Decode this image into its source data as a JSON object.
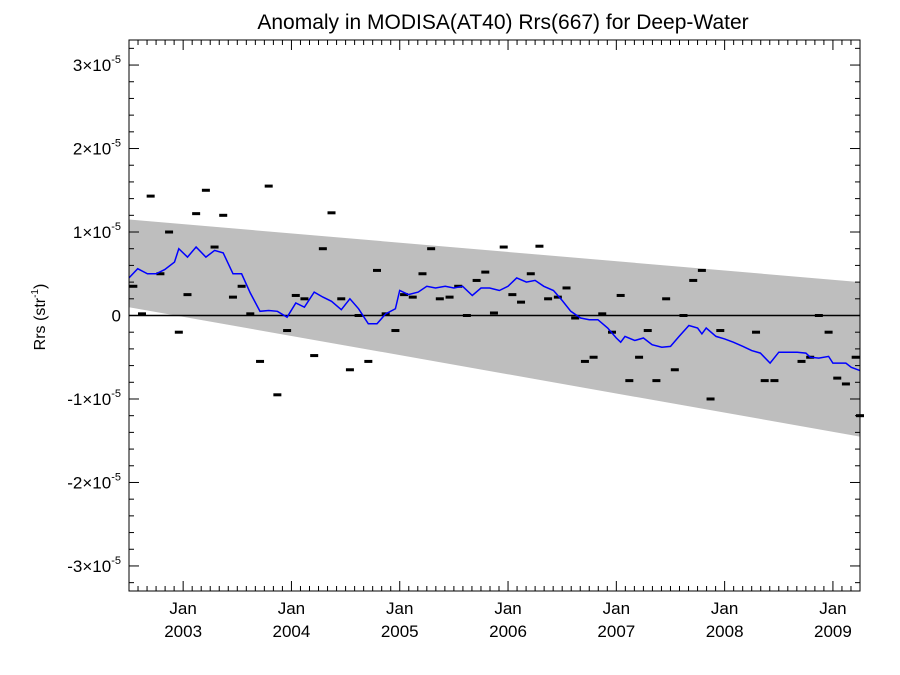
{
  "chart_data": {
    "type": "scatter",
    "title": "Anomaly in MODISA(AT40) Rrs(667) for Deep-Water",
    "ylabel": "Rrs (str-1)",
    "ylabel_main": "Rrs (str",
    "ylabel_sup": "-1",
    "ylabel_close": ")",
    "xlabel": "",
    "xlim": [
      2002.5,
      2009.25
    ],
    "ylim": [
      -3.3e-05,
      3.3e-05
    ],
    "grid": false,
    "y_ticks": [
      {
        "value": -3e-05,
        "mantissa": "-3",
        "base": "×10",
        "exp": "-5"
      },
      {
        "value": -2e-05,
        "mantissa": "-2",
        "base": "×10",
        "exp": "-5"
      },
      {
        "value": -1e-05,
        "mantissa": "-1",
        "base": "×10",
        "exp": "-5"
      },
      {
        "value": 0,
        "mantissa": "0",
        "base": "",
        "exp": ""
      },
      {
        "value": 1e-05,
        "mantissa": "1",
        "base": "×10",
        "exp": "-5"
      },
      {
        "value": 2e-05,
        "mantissa": "2",
        "base": "×10",
        "exp": "-5"
      },
      {
        "value": 3e-05,
        "mantissa": "3",
        "base": "×10",
        "exp": "-5"
      }
    ],
    "x_ticks": [
      {
        "value": 2003.0,
        "month": "Jan",
        "year": "2003"
      },
      {
        "value": 2004.0,
        "month": "Jan",
        "year": "2004"
      },
      {
        "value": 2005.0,
        "month": "Jan",
        "year": "2005"
      },
      {
        "value": 2006.0,
        "month": "Jan",
        "year": "2006"
      },
      {
        "value": 2007.0,
        "month": "Jan",
        "year": "2007"
      },
      {
        "value": 2008.0,
        "month": "Jan",
        "year": "2008"
      },
      {
        "value": 2009.0,
        "month": "Jan",
        "year": "2009"
      }
    ],
    "band": {
      "upper": [
        [
          2002.5,
          1.15e-05
        ],
        [
          2009.25,
          4e-06
        ]
      ],
      "lower": [
        [
          2002.5,
          1e-06
        ],
        [
          2009.25,
          -1.45e-05
        ]
      ],
      "color": "#bebebe"
    },
    "zero_line_color": "#000000",
    "series": [
      {
        "kind": "markers",
        "color": "#000000",
        "points": [
          [
            2002.54,
            3.5e-06
          ],
          [
            2002.62,
            2e-07
          ],
          [
            2002.7,
            1.43e-05
          ],
          [
            2002.79,
            5e-06
          ],
          [
            2002.87,
            1e-05
          ],
          [
            2002.96,
            -2e-06
          ],
          [
            2003.04,
            2.5e-06
          ],
          [
            2003.12,
            1.22e-05
          ],
          [
            2003.21,
            1.5e-05
          ],
          [
            2003.29,
            8.2e-06
          ],
          [
            2003.37,
            1.2e-05
          ],
          [
            2003.46,
            2.2e-06
          ],
          [
            2003.54,
            3.5e-06
          ],
          [
            2003.62,
            2e-07
          ],
          [
            2003.71,
            -5.5e-06
          ],
          [
            2003.79,
            1.55e-05
          ],
          [
            2003.87,
            -9.5e-06
          ],
          [
            2003.96,
            -1.8e-06
          ],
          [
            2004.04,
            2.4e-06
          ],
          [
            2004.12,
            2e-06
          ],
          [
            2004.21,
            -4.8e-06
          ],
          [
            2004.29,
            8e-06
          ],
          [
            2004.37,
            1.23e-05
          ],
          [
            2004.46,
            2e-06
          ],
          [
            2004.54,
            -6.5e-06
          ],
          [
            2004.62,
            0.0
          ],
          [
            2004.71,
            -5.5e-06
          ],
          [
            2004.79,
            5.4e-06
          ],
          [
            2004.87,
            2e-07
          ],
          [
            2004.96,
            -1.8e-06
          ],
          [
            2005.04,
            2.5e-06
          ],
          [
            2005.12,
            2.2e-06
          ],
          [
            2005.21,
            5e-06
          ],
          [
            2005.29,
            8e-06
          ],
          [
            2005.37,
            2e-06
          ],
          [
            2005.46,
            2.2e-06
          ],
          [
            2005.54,
            3.5e-06
          ],
          [
            2005.62,
            0.0
          ],
          [
            2005.71,
            4.2e-06
          ],
          [
            2005.79,
            5.2e-06
          ],
          [
            2005.87,
            3e-07
          ],
          [
            2005.96,
            8.2e-06
          ],
          [
            2006.04,
            2.5e-06
          ],
          [
            2006.12,
            1.6e-06
          ],
          [
            2006.21,
            5e-06
          ],
          [
            2006.29,
            8.3e-06
          ],
          [
            2006.37,
            2e-06
          ],
          [
            2006.46,
            2.2e-06
          ],
          [
            2006.54,
            3.3e-06
          ],
          [
            2006.62,
            -3e-07
          ],
          [
            2006.71,
            -5.5e-06
          ],
          [
            2006.79,
            -5e-06
          ],
          [
            2006.87,
            2e-07
          ],
          [
            2006.96,
            -2e-06
          ],
          [
            2007.04,
            2.4e-06
          ],
          [
            2007.12,
            -7.8e-06
          ],
          [
            2007.21,
            -5e-06
          ],
          [
            2007.29,
            -1.8e-06
          ],
          [
            2007.37,
            -7.8e-06
          ],
          [
            2007.46,
            2e-06
          ],
          [
            2007.54,
            -6.5e-06
          ],
          [
            2007.62,
            0.0
          ],
          [
            2007.71,
            4.2e-06
          ],
          [
            2007.79,
            5.4e-06
          ],
          [
            2007.87,
            -1e-05
          ],
          [
            2007.96,
            -1.8e-06
          ],
          [
            2008.29,
            -2e-06
          ],
          [
            2008.37,
            -7.8e-06
          ],
          [
            2008.46,
            -7.8e-06
          ],
          [
            2008.71,
            -5.5e-06
          ],
          [
            2008.79,
            -5e-06
          ],
          [
            2008.87,
            0.0
          ],
          [
            2008.96,
            -2e-06
          ],
          [
            2009.04,
            -7.5e-06
          ],
          [
            2009.12,
            -8.2e-06
          ],
          [
            2009.21,
            -5e-06
          ],
          [
            2009.25,
            -1.2e-05
          ]
        ]
      },
      {
        "kind": "line",
        "color": "#0000ff",
        "points": [
          [
            2002.5,
            4.5e-06
          ],
          [
            2002.58,
            5.6e-06
          ],
          [
            2002.67,
            5e-06
          ],
          [
            2002.75,
            5e-06
          ],
          [
            2002.83,
            5.5e-06
          ],
          [
            2002.92,
            6.4e-06
          ],
          [
            2002.96,
            8e-06
          ],
          [
            2003.04,
            7e-06
          ],
          [
            2003.12,
            8.2e-06
          ],
          [
            2003.21,
            7e-06
          ],
          [
            2003.29,
            7.8e-06
          ],
          [
            2003.37,
            7.5e-06
          ],
          [
            2003.46,
            5e-06
          ],
          [
            2003.54,
            5e-06
          ],
          [
            2003.62,
            2.7e-06
          ],
          [
            2003.71,
            5e-07
          ],
          [
            2003.79,
            6e-07
          ],
          [
            2003.87,
            5e-07
          ],
          [
            2003.96,
            -2e-07
          ],
          [
            2004.04,
            1.5e-06
          ],
          [
            2004.12,
            1e-06
          ],
          [
            2004.21,
            2.8e-06
          ],
          [
            2004.29,
            2.2e-06
          ],
          [
            2004.37,
            1.7e-06
          ],
          [
            2004.46,
            7e-07
          ],
          [
            2004.54,
            2e-06
          ],
          [
            2004.62,
            8e-07
          ],
          [
            2004.71,
            -1e-06
          ],
          [
            2004.79,
            -1e-06
          ],
          [
            2004.87,
            2e-07
          ],
          [
            2004.96,
            8e-07
          ],
          [
            2005.0,
            3e-06
          ],
          [
            2005.08,
            2.5e-06
          ],
          [
            2005.17,
            2.8e-06
          ],
          [
            2005.25,
            3.5e-06
          ],
          [
            2005.33,
            3.3e-06
          ],
          [
            2005.42,
            3.5e-06
          ],
          [
            2005.5,
            3.3e-06
          ],
          [
            2005.58,
            3.5e-06
          ],
          [
            2005.67,
            2.4e-06
          ],
          [
            2005.75,
            3.3e-06
          ],
          [
            2005.83,
            3.3e-06
          ],
          [
            2005.92,
            3e-06
          ],
          [
            2006.0,
            3.5e-06
          ],
          [
            2006.08,
            4.5e-06
          ],
          [
            2006.17,
            4e-06
          ],
          [
            2006.25,
            4.2e-06
          ],
          [
            2006.33,
            3.5e-06
          ],
          [
            2006.42,
            3e-06
          ],
          [
            2006.5,
            1.8e-06
          ],
          [
            2006.58,
            5e-07
          ],
          [
            2006.67,
            -3e-07
          ],
          [
            2006.75,
            -5e-07
          ],
          [
            2006.83,
            -5e-07
          ],
          [
            2006.92,
            -1.5e-06
          ],
          [
            2007.0,
            -2.7e-06
          ],
          [
            2007.04,
            -3.2e-06
          ],
          [
            2007.08,
            -2.5e-06
          ],
          [
            2007.17,
            -3e-06
          ],
          [
            2007.25,
            -2.7e-06
          ],
          [
            2007.33,
            -3.5e-06
          ],
          [
            2007.42,
            -3.8e-06
          ],
          [
            2007.5,
            -3.7e-06
          ],
          [
            2007.58,
            -2.5e-06
          ],
          [
            2007.67,
            -1.2e-06
          ],
          [
            2007.75,
            -1.5e-06
          ],
          [
            2007.79,
            -2.2e-06
          ],
          [
            2007.83,
            -1.5e-06
          ],
          [
            2007.92,
            -2.5e-06
          ],
          [
            2008.0,
            -2.8e-06
          ],
          [
            2008.08,
            -3.2e-06
          ],
          [
            2008.17,
            -3.7e-06
          ],
          [
            2008.25,
            -4.2e-06
          ],
          [
            2008.33,
            -4.5e-06
          ],
          [
            2008.42,
            -5.7e-06
          ],
          [
            2008.5,
            -4.4e-06
          ],
          [
            2008.58,
            -4.4e-06
          ],
          [
            2008.67,
            -4.4e-06
          ],
          [
            2008.75,
            -4.5e-06
          ],
          [
            2008.79,
            -5e-06
          ],
          [
            2008.87,
            -5.1e-06
          ],
          [
            2008.96,
            -4.9e-06
          ],
          [
            2009.0,
            -5.7e-06
          ],
          [
            2009.08,
            -5.7e-06
          ],
          [
            2009.12,
            -5.7e-06
          ],
          [
            2009.17,
            -6.2e-06
          ],
          [
            2009.25,
            -6.6e-06
          ]
        ]
      }
    ]
  }
}
